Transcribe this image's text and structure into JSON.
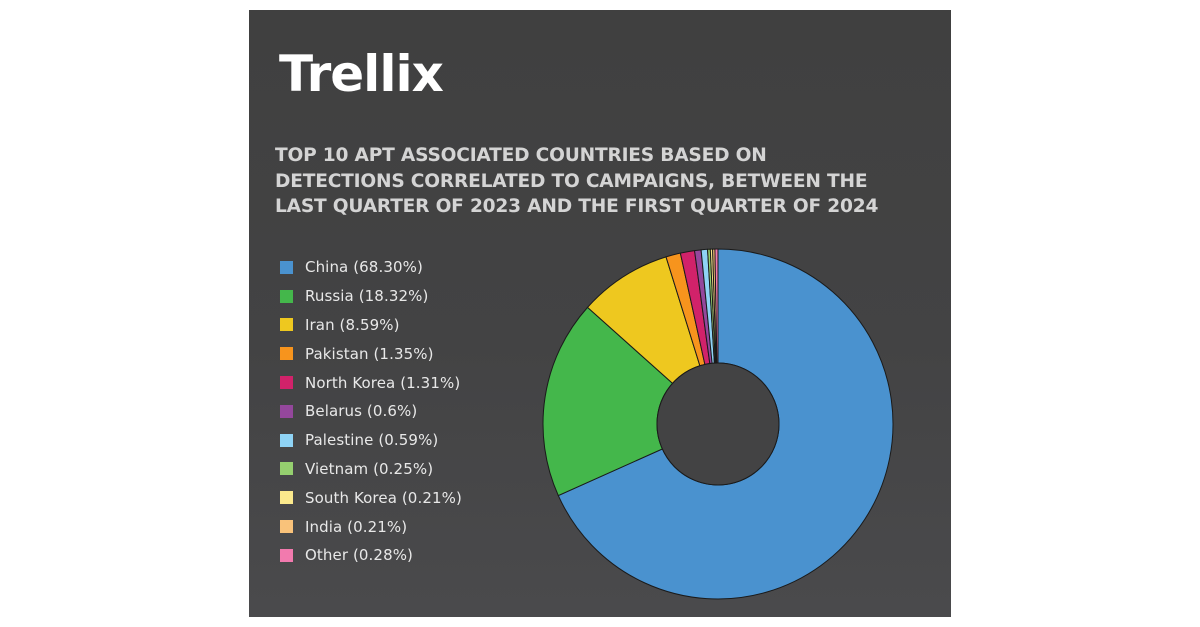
{
  "brand": {
    "logo_text": "Trellix"
  },
  "title_lines": [
    "TOP 10 APT ASSOCIATED COUNTRIES BASED ON",
    "DETECTIONS CORRELATED TO CAMPAIGNS, BETWEEN THE",
    "LAST QUARTER OF 2023 AND THE FIRST QUARTER OF 2024"
  ],
  "legend": [
    {
      "label": "China (68.30%)",
      "color": "#4a92cf"
    },
    {
      "label": "Russia (18.32%)",
      "color": "#44b74b"
    },
    {
      "label": "Iran (8.59%)",
      "color": "#eec81f"
    },
    {
      "label": "Pakistan (1.35%)",
      "color": "#f7941d"
    },
    {
      "label": "North Korea (1.31%)",
      "color": "#d1226a"
    },
    {
      "label": "Belarus (0.6%)",
      "color": "#94479c"
    },
    {
      "label": "Palestine (0.59%)",
      "color": "#8fd3f5"
    },
    {
      "label": "Vietnam (0.25%)",
      "color": "#95cf6f"
    },
    {
      "label": "South Korea (0.21%)",
      "color": "#fbe98c"
    },
    {
      "label": "India (0.21%)",
      "color": "#f9c27a"
    },
    {
      "label": "Other (0.28%)",
      "color": "#f27aae"
    }
  ],
  "chart_data": {
    "type": "pie",
    "variant": "donut",
    "title": "TOP 10 APT ASSOCIATED COUNTRIES BASED ON DETECTIONS CORRELATED TO CAMPAIGNS, BETWEEN THE LAST QUARTER OF 2023 AND THE FIRST QUARTER OF 2024",
    "categories": [
      "China",
      "Russia",
      "Iran",
      "Pakistan",
      "North Korea",
      "Belarus",
      "Palestine",
      "Vietnam",
      "South Korea",
      "India",
      "Other"
    ],
    "values": [
      68.3,
      18.32,
      8.59,
      1.35,
      1.31,
      0.6,
      0.59,
      0.25,
      0.21,
      0.21,
      0.28
    ],
    "unit": "%",
    "colors": [
      "#4a92cf",
      "#44b74b",
      "#eec81f",
      "#f7941d",
      "#d1226a",
      "#94479c",
      "#8fd3f5",
      "#95cf6f",
      "#fbe98c",
      "#f9c27a",
      "#f27aae"
    ],
    "start_angle": "12 o'clock",
    "legend_position": "left",
    "grid": false
  }
}
